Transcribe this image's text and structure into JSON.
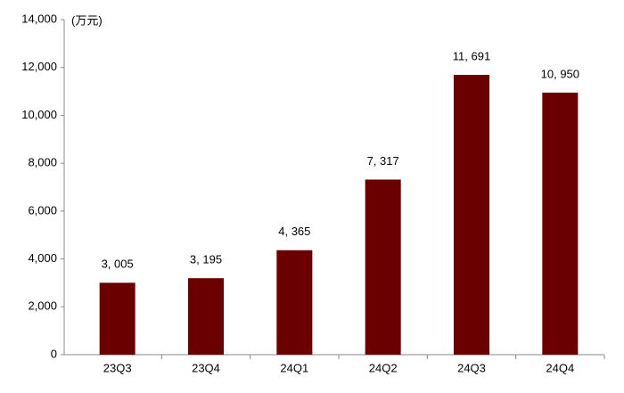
{
  "chart_data": {
    "type": "bar",
    "unit_label": "(万元)",
    "categories": [
      "23Q3",
      "23Q4",
      "24Q1",
      "24Q2",
      "24Q3",
      "24Q4"
    ],
    "values": [
      3005,
      3195,
      4365,
      7317,
      11691,
      10950
    ],
    "value_labels": [
      "3, 005",
      "3, 195",
      "4, 365",
      "7, 317",
      "11, 691",
      "10, 950"
    ],
    "color": "#6b0000",
    "ylim": [
      0,
      14000
    ],
    "yticks": [
      0,
      {
        "value": 2000,
        "label": "2,000"
      },
      {
        "value": 4000,
        "label": "4,000"
      },
      {
        "value": 6000,
        "label": "6,000"
      },
      {
        "value": 8000,
        "label": "8,000"
      },
      {
        "value": 10000,
        "label": "10,000"
      },
      {
        "value": 12000,
        "label": "12,000"
      },
      {
        "value": 14000,
        "label": "14,000"
      }
    ],
    "grid": false
  }
}
